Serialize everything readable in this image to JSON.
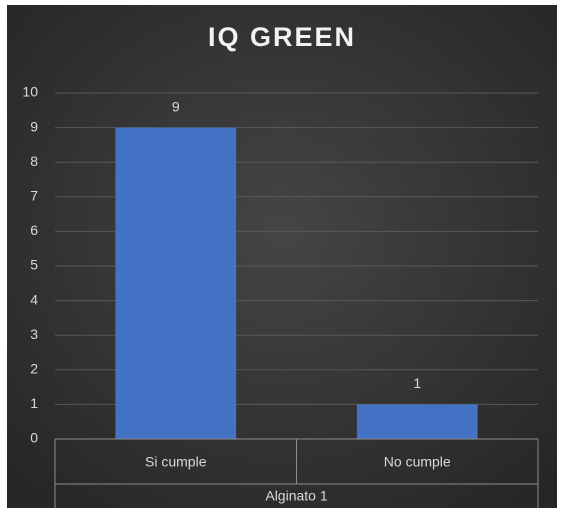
{
  "chart_data": {
    "type": "bar",
    "title": "IQ GREEN",
    "categories": [
      "Si cumple",
      "No cumple"
    ],
    "group": "Alginato 1",
    "values": [
      9,
      1
    ],
    "color": "#4472c4",
    "ylim": [
      0,
      10
    ],
    "yticks": [
      0,
      1,
      2,
      3,
      4,
      5,
      6,
      7,
      8,
      9,
      10
    ],
    "grid": true
  }
}
